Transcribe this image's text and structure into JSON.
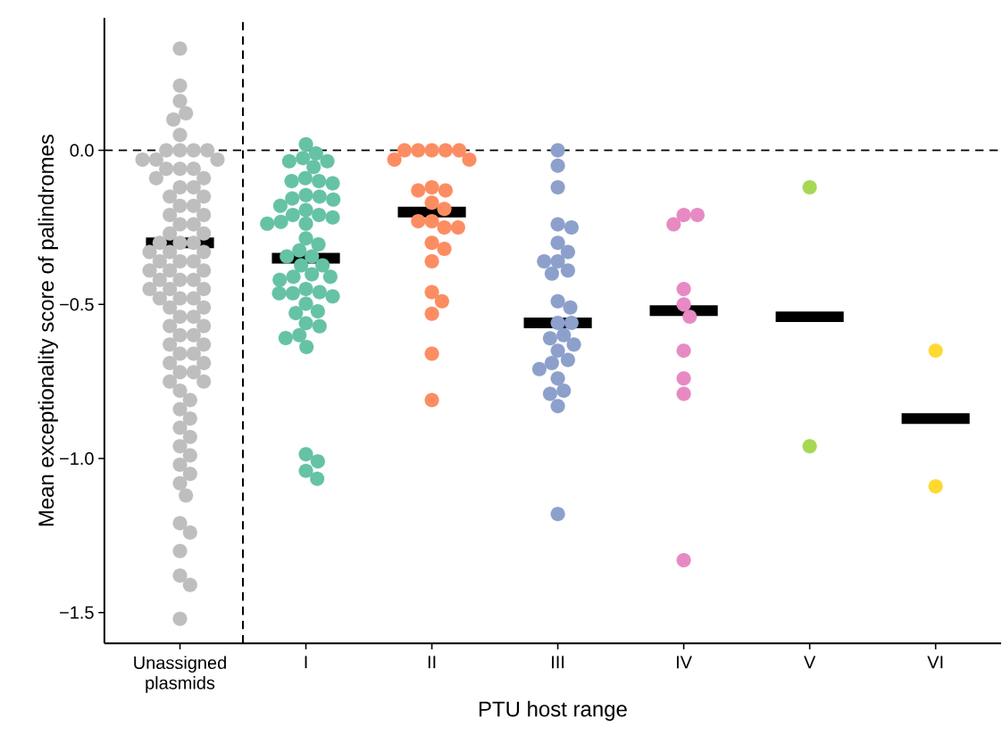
{
  "chart_data": {
    "type": "scatter",
    "xlabel": "PTU host range",
    "ylabel": "Mean exceptionality score of palindromes",
    "categories": [
      "Unassigned plasmids",
      "I",
      "II",
      "III",
      "IV",
      "V",
      "VI"
    ],
    "ylim": [
      -1.6,
      0.43
    ],
    "yticks": [
      {
        "value": -1.5,
        "label": "−1.5"
      },
      {
        "value": -1.0,
        "label": "−1.0"
      },
      {
        "value": -0.5,
        "label": "−0.5"
      },
      {
        "value": 0.0,
        "label": "0.0"
      }
    ],
    "marker": "circle",
    "ref_lines": [
      {
        "axis": "y",
        "value": 0,
        "line_style": "dashed",
        "color": "#000000"
      }
    ],
    "series": [
      {
        "color": "#bebebe",
        "values": [
          0.33,
          0.21,
          0.16,
          0.12,
          0.1,
          0.05,
          0.0,
          0.0,
          0.0,
          0.0,
          -0.03,
          -0.03,
          -0.03,
          -0.06,
          -0.06,
          -0.06,
          -0.09,
          -0.09,
          -0.12,
          -0.12,
          -0.15,
          -0.15,
          -0.18,
          -0.18,
          -0.21,
          -0.21,
          -0.24,
          -0.24,
          -0.27,
          -0.27,
          -0.3,
          -0.3,
          -0.3,
          -0.33,
          -0.33,
          -0.33,
          -0.36,
          -0.36,
          -0.36,
          -0.39,
          -0.39,
          -0.39,
          -0.42,
          -0.42,
          -0.42,
          -0.45,
          -0.45,
          -0.45,
          -0.48,
          -0.48,
          -0.48,
          -0.51,
          -0.51,
          -0.54,
          -0.54,
          -0.57,
          -0.57,
          -0.6,
          -0.6,
          -0.63,
          -0.63,
          -0.66,
          -0.66,
          -0.69,
          -0.69,
          -0.72,
          -0.72,
          -0.75,
          -0.75,
          -0.78,
          -0.81,
          -0.84,
          -0.87,
          -0.9,
          -0.93,
          -0.96,
          -0.99,
          -1.02,
          -1.05,
          -1.08,
          -1.12,
          -1.21,
          -1.24,
          -1.3,
          -1.38,
          -1.41,
          -1.52
        ],
        "x": [
          "Unassigned plasmids",
          "Unassigned plasmids",
          "Unassigned plasmids",
          "Unassigned plasmids",
          "Unassigned plasmids",
          "Unassigned plasmids",
          "Unassigned plasmids",
          "Unassigned plasmids",
          "Unassigned plasmids",
          "Unassigned plasmids",
          "Unassigned plasmids",
          "Unassigned plasmids",
          "Unassigned plasmids",
          "Unassigned plasmids",
          "Unassigned plasmids",
          "Unassigned plasmids",
          "Unassigned plasmids",
          "Unassigned plasmids",
          "Unassigned plasmids",
          "Unassigned plasmids",
          "Unassigned plasmids",
          "Unassigned plasmids",
          "Unassigned plasmids",
          "Unassigned plasmids",
          "Unassigned plasmids",
          "Unassigned plasmids",
          "Unassigned plasmids",
          "Unassigned plasmids",
          "Unassigned plasmids",
          "Unassigned plasmids",
          "Unassigned plasmids",
          "Unassigned plasmids",
          "Unassigned plasmids",
          "Unassigned plasmids",
          "Unassigned plasmids",
          "Unassigned plasmids",
          "Unassigned plasmids",
          "Unassigned plasmids",
          "Unassigned plasmids",
          "Unassigned plasmids",
          "Unassigned plasmids",
          "Unassigned plasmids",
          "Unassigned plasmids",
          "Unassigned plasmids",
          "Unassigned plasmids",
          "Unassigned plasmids",
          "Unassigned plasmids",
          "Unassigned plasmids",
          "Unassigned plasmids",
          "Unassigned plasmids",
          "Unassigned plasmids",
          "Unassigned plasmids",
          "Unassigned plasmids",
          "Unassigned plasmids",
          "Unassigned plasmids",
          "Unassigned plasmids",
          "Unassigned plasmids",
          "Unassigned plasmids",
          "Unassigned plasmids",
          "Unassigned plasmids",
          "Unassigned plasmids",
          "Unassigned plasmids",
          "Unassigned plasmids",
          "Unassigned plasmids",
          "Unassigned plasmids",
          "Unassigned plasmids",
          "Unassigned plasmids",
          "Unassigned plasmids",
          "Unassigned plasmids",
          "Unassigned plasmids",
          "Unassigned plasmids",
          "Unassigned plasmids",
          "Unassigned plasmids",
          "Unassigned plasmids",
          "Unassigned plasmids",
          "Unassigned plasmids",
          "Unassigned plasmids",
          "Unassigned plasmids",
          "Unassigned plasmids",
          "Unassigned plasmids",
          "Unassigned plasmids",
          "Unassigned plasmids",
          "Unassigned plasmids",
          "Unassigned plasmids",
          "Unassigned plasmids",
          "Unassigned plasmids",
          "Unassigned plasmids"
        ]
      },
      {
        "color": "#66c2a5",
        "values": [
          0.02,
          -0.01,
          -0.035,
          -0.054,
          -0.035,
          -0.025,
          -0.09,
          -0.1,
          -0.107,
          -0.1,
          -0.156,
          -0.15,
          -0.16,
          -0.145,
          -0.18,
          -0.194,
          -0.21,
          -0.21,
          -0.218,
          -0.238,
          -0.238,
          -0.232,
          -0.286,
          -0.305,
          -0.325,
          -0.344,
          -0.344,
          -0.373,
          -0.373,
          -0.402,
          -0.41,
          -0.41,
          -0.42,
          -0.46,
          -0.45,
          -0.474,
          -0.464,
          -0.464,
          -0.498,
          -0.528,
          -0.522,
          -0.571,
          -0.561,
          -0.609,
          -0.6,
          -0.638,
          -0.986,
          -1.009,
          -1.04,
          -1.066
        ],
        "x": [
          "I",
          "I",
          "I",
          "I",
          "I",
          "I",
          "I",
          "I",
          "I",
          "I",
          "I",
          "I",
          "I",
          "I",
          "I",
          "I",
          "I",
          "I",
          "I",
          "I",
          "I",
          "I",
          "I",
          "I",
          "I",
          "I",
          "I",
          "I",
          "I",
          "I",
          "I",
          "I",
          "I",
          "I",
          "I",
          "I",
          "I",
          "I",
          "I",
          "I",
          "I",
          "I",
          "I",
          "I",
          "I",
          "I",
          "I",
          "I",
          "I",
          "I"
        ]
      },
      {
        "color": "#fc8d62",
        "values": [
          0,
          0,
          0,
          0,
          0,
          -0.03,
          -0.03,
          -0.13,
          -0.12,
          -0.13,
          -0.17,
          -0.19,
          -0.23,
          -0.25,
          -0.25,
          -0.23,
          -0.3,
          -0.32,
          -0.36,
          -0.46,
          -0.49,
          -0.53,
          -0.66,
          -0.81
        ],
        "x": [
          "II",
          "II",
          "II",
          "II",
          "II",
          "II",
          "II",
          "II",
          "II",
          "II",
          "II",
          "II",
          "II",
          "II",
          "II",
          "II",
          "II",
          "II",
          "II",
          "II",
          "II",
          "II",
          "II",
          "II"
        ]
      },
      {
        "color": "#8da0cb",
        "values": [
          0,
          -0.05,
          -0.12,
          -0.24,
          -0.25,
          -0.3,
          -0.33,
          -0.36,
          -0.36,
          -0.39,
          -0.4,
          -0.49,
          -0.51,
          -0.56,
          -0.56,
          -0.6,
          -0.63,
          -0.61,
          -0.65,
          -0.68,
          -0.69,
          -0.71,
          -0.74,
          -0.78,
          -0.79,
          -0.83,
          -1.18
        ],
        "x": [
          "III",
          "III",
          "III",
          "III",
          "III",
          "III",
          "III",
          "III",
          "III",
          "III",
          "III",
          "III",
          "III",
          "III",
          "III",
          "III",
          "III",
          "III",
          "III",
          "III",
          "III",
          "III",
          "III",
          "III",
          "III",
          "III",
          "III"
        ]
      },
      {
        "color": "#e78ac3",
        "values": [
          -0.24,
          -0.21,
          -0.21,
          -0.45,
          -0.5,
          -0.54,
          -0.65,
          -0.74,
          -0.79,
          -1.33
        ],
        "x": [
          "IV",
          "IV",
          "IV",
          "IV",
          "IV",
          "IV",
          "IV",
          "IV",
          "IV",
          "IV"
        ]
      },
      {
        "color": "#a6d854",
        "values": [
          -0.12,
          -0.96
        ],
        "x": [
          "V",
          "V"
        ]
      },
      {
        "color": "#ffd92f",
        "values": [
          -0.65,
          -1.09
        ],
        "x": [
          "VI",
          "VI"
        ]
      },
      {
        "type": "box",
        "color": "#000000",
        "boxes": [
          {
            "low": -0.3,
            "q1": -0.3,
            "median": -0.3,
            "q3": -0.3,
            "high": -0.3
          },
          {
            "low": -0.35,
            "q1": -0.35,
            "median": -0.35,
            "q3": -0.35,
            "high": -0.35
          },
          {
            "low": -0.2,
            "q1": -0.2,
            "median": -0.2,
            "q3": -0.2,
            "high": -0.2
          },
          {
            "low": -0.56,
            "q1": -0.56,
            "median": -0.56,
            "q3": -0.56,
            "high": -0.56
          },
          {
            "low": -0.52,
            "q1": -0.52,
            "median": -0.52,
            "q3": -0.52,
            "high": -0.52
          },
          {
            "low": -0.54,
            "q1": -0.54,
            "median": -0.54,
            "q3": -0.54,
            "high": -0.54
          },
          {
            "low": -0.87,
            "q1": -0.87,
            "median": -0.87,
            "q3": -0.87,
            "high": -0.87
          }
        ]
      }
    ]
  }
}
